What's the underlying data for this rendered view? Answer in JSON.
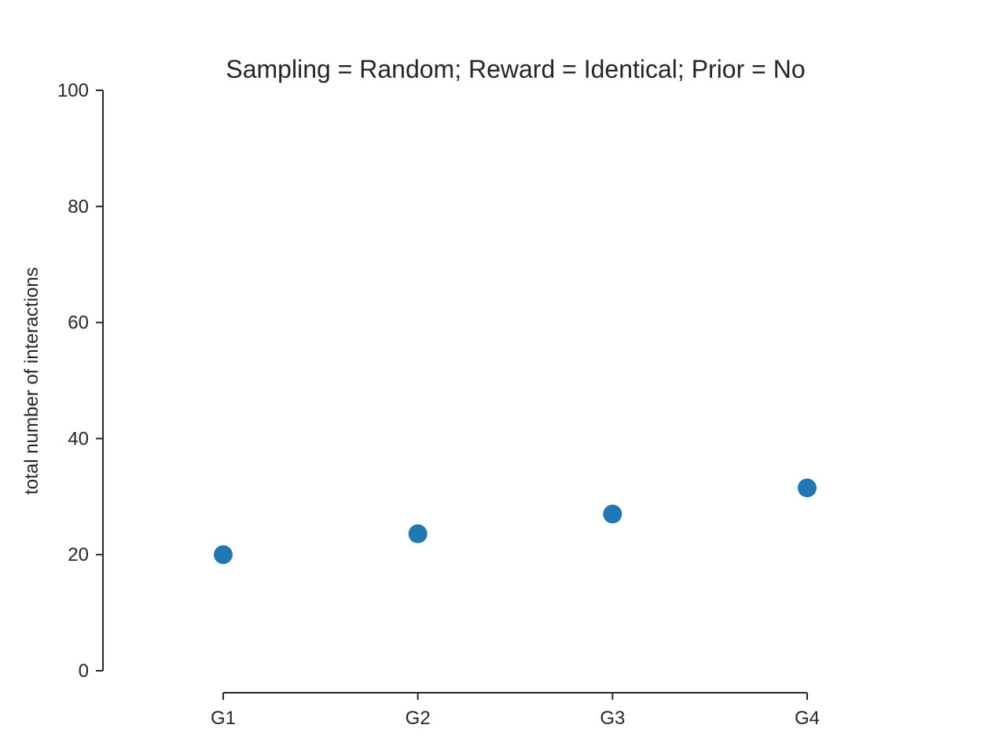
{
  "chart_data": {
    "type": "scatter",
    "title": "Sampling = Random; Reward = Identical; Prior = No",
    "xlabel": "",
    "ylabel": "total number of interactions",
    "categories": [
      "G1",
      "G2",
      "G3",
      "G4"
    ],
    "series": [
      {
        "values": [
          20.0,
          23.6,
          27.0,
          31.5
        ],
        "color": "#1f77b4"
      }
    ],
    "ylim": [
      0,
      100
    ],
    "yticks": [
      "0",
      "20",
      "40",
      "60",
      "80",
      "100"
    ],
    "ytick_values": [
      0,
      20,
      40,
      60,
      80,
      100
    ],
    "grid": false,
    "legend": "none"
  }
}
